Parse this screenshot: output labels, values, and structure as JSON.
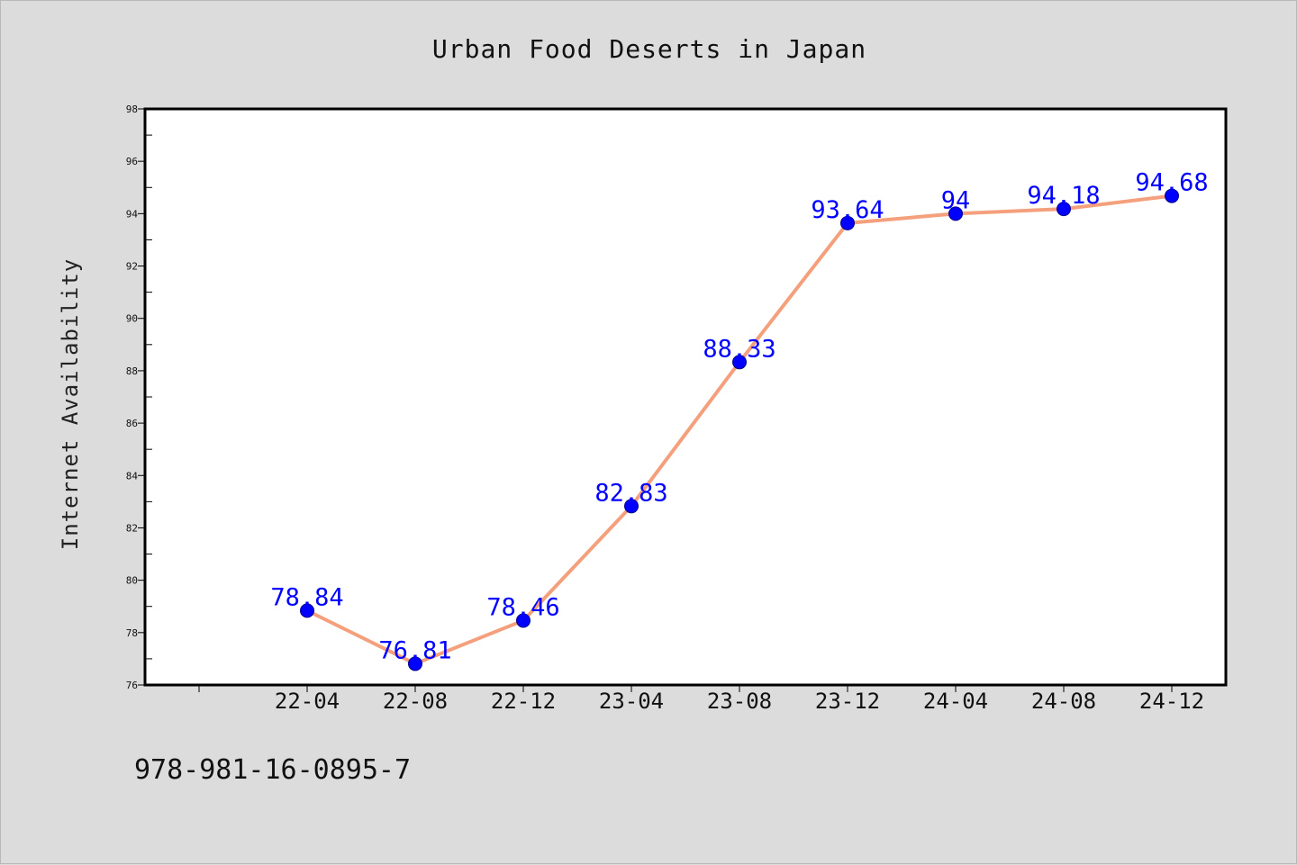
{
  "chart_data": {
    "type": "line",
    "title": "Urban Food Deserts in Japan",
    "xlabel": "",
    "ylabel": "Internet Availability",
    "categories": [
      "22-04",
      "22-08",
      "22-12",
      "23-04",
      "23-08",
      "23-12",
      "24-04",
      "24-08",
      "24-12"
    ],
    "values": [
      78.84,
      76.81,
      78.46,
      82.83,
      88.33,
      93.64,
      94,
      94.18,
      94.68
    ],
    "data_labels": [
      "78.84",
      "76.81",
      "78.46",
      "82.83",
      "88.33",
      "93.64",
      "94",
      "94.18",
      "94.68"
    ],
    "ylim": [
      76,
      98
    ],
    "yticks": [
      76,
      78,
      80,
      82,
      84,
      86,
      88,
      90,
      92,
      94,
      96,
      98
    ],
    "grid": false,
    "line_color": "#f4a07c",
    "marker_color": "#0000ff",
    "label_color": "#0000ff"
  },
  "annotation": {
    "isbn": "978-981-16-0895-7"
  }
}
